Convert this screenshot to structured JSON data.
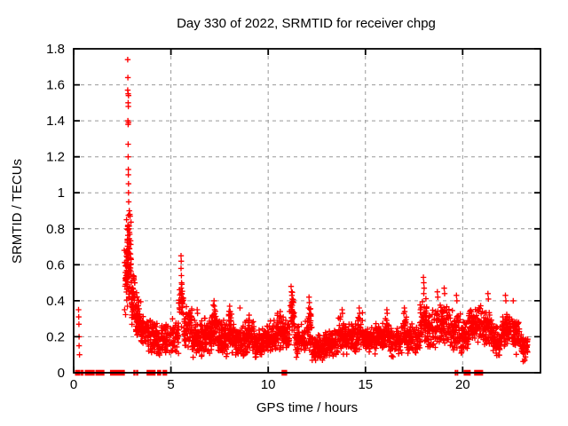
{
  "chart_data": {
    "type": "scatter",
    "title": "Day 330 of 2022, SRMTID for receiver chpg",
    "xlabel": "GPS time / hours",
    "ylabel": "SRMTID / TECUs",
    "xlim": [
      0,
      24
    ],
    "ylim": [
      0,
      1.8
    ],
    "x_ticks": {
      "values": [
        0,
        5,
        10,
        15,
        20
      ],
      "labels": [
        "0",
        "5",
        "10",
        "15",
        "20"
      ]
    },
    "y_ticks": {
      "values": [
        0,
        0.2,
        0.4,
        0.6,
        0.8,
        1.0,
        1.2,
        1.4,
        1.6,
        1.8
      ],
      "labels": [
        "0",
        "0.2",
        "0.4",
        "0.6",
        "0.8",
        "1",
        "1.2",
        "1.4",
        "1.6",
        "1.8"
      ]
    },
    "grid": true,
    "legend": false,
    "marker": {
      "shape": "plus",
      "size": 6.4,
      "color": "#ff0000"
    },
    "colors": {
      "marker": "#ff0000",
      "grid": "#999999",
      "border": "#000000",
      "background": "#ffffff",
      "text": "#000000"
    },
    "outlier_points": [
      [
        0.25,
        0.35
      ],
      [
        0.26,
        0.31
      ],
      [
        0.27,
        0.27
      ],
      [
        0.28,
        0.2
      ],
      [
        0.28,
        0.15
      ],
      [
        0.3,
        0.1
      ],
      [
        2.6,
        0.68
      ],
      [
        2.62,
        0.35
      ],
      [
        2.78,
        1.74
      ],
      [
        2.79,
        1.64
      ],
      [
        2.78,
        1.57
      ],
      [
        2.8,
        1.55
      ],
      [
        2.82,
        1.54
      ],
      [
        2.8,
        1.5
      ],
      [
        2.81,
        1.48
      ],
      [
        2.79,
        1.4
      ],
      [
        2.8,
        1.38
      ],
      [
        2.82,
        1.39
      ],
      [
        2.8,
        1.27
      ],
      [
        2.8,
        1.2
      ],
      [
        2.81,
        1.13
      ],
      [
        2.81,
        1.1
      ],
      [
        2.82,
        1.05
      ],
      [
        2.82,
        1.0
      ],
      [
        2.83,
        0.95
      ],
      [
        2.86,
        0.9
      ],
      [
        2.88,
        0.88
      ],
      [
        2.9,
        0.87
      ],
      [
        2.72,
        0.85
      ],
      [
        2.84,
        0.8
      ],
      [
        2.87,
        0.78
      ],
      [
        2.85,
        0.72
      ],
      [
        2.92,
        0.66
      ],
      [
        2.95,
        0.63
      ],
      [
        2.9,
        0.6
      ],
      [
        5.52,
        0.65
      ],
      [
        5.53,
        0.62
      ],
      [
        5.52,
        0.58
      ],
      [
        5.54,
        0.54
      ],
      [
        5.55,
        0.5
      ],
      [
        5.53,
        0.47
      ],
      [
        5.56,
        0.44
      ],
      [
        5.55,
        0.4
      ],
      [
        5.57,
        0.37
      ],
      [
        6.35,
        0.35
      ],
      [
        6.37,
        0.33
      ],
      [
        7.22,
        0.4
      ],
      [
        7.23,
        0.37
      ],
      [
        7.25,
        0.35
      ],
      [
        8.02,
        0.37
      ],
      [
        8.05,
        0.34
      ],
      [
        8.55,
        0.36
      ],
      [
        9.02,
        0.32
      ],
      [
        10.62,
        0.34
      ],
      [
        10.64,
        0.31
      ],
      [
        11.18,
        0.48
      ],
      [
        11.2,
        0.45
      ],
      [
        11.22,
        0.43
      ],
      [
        11.24,
        0.41
      ],
      [
        11.2,
        0.39
      ],
      [
        12.1,
        0.42
      ],
      [
        12.12,
        0.39
      ],
      [
        12.08,
        0.36
      ],
      [
        13.8,
        0.35
      ],
      [
        13.82,
        0.33
      ],
      [
        14.68,
        0.36
      ],
      [
        14.7,
        0.33
      ],
      [
        16.1,
        0.35
      ],
      [
        16.12,
        0.33
      ],
      [
        17.0,
        0.36
      ],
      [
        17.02,
        0.34
      ],
      [
        17.98,
        0.53
      ],
      [
        18.0,
        0.5
      ],
      [
        18.02,
        0.47
      ],
      [
        18.0,
        0.44
      ],
      [
        18.7,
        0.45
      ],
      [
        18.72,
        0.42
      ],
      [
        19.05,
        0.47
      ],
      [
        19.07,
        0.44
      ],
      [
        19.68,
        0.43
      ],
      [
        19.7,
        0.4
      ],
      [
        21.3,
        0.44
      ],
      [
        21.32,
        0.41
      ],
      [
        22.2,
        0.43
      ],
      [
        22.22,
        0.4
      ],
      [
        22.6,
        0.4
      ]
    ],
    "zero_value_runs": [
      [
        0.1,
        0.3
      ],
      [
        0.38,
        0.5
      ],
      [
        0.6,
        1.05
      ],
      [
        1.15,
        1.55
      ],
      [
        1.9,
        2.62
      ],
      [
        3.1,
        3.16
      ],
      [
        3.24,
        3.3
      ],
      [
        3.78,
        4.18
      ],
      [
        4.32,
        4.48
      ],
      [
        4.6,
        4.78
      ],
      [
        10.72,
        10.95
      ],
      [
        19.62,
        19.66
      ],
      [
        19.72,
        19.76
      ],
      [
        20.08,
        20.38
      ],
      [
        20.62,
        21.02
      ]
    ],
    "dense_band_segments": [
      [
        2.62,
        2.75,
        0.3,
        0.75,
        25
      ],
      [
        2.75,
        2.95,
        0.35,
        0.95,
        60
      ],
      [
        2.95,
        3.15,
        0.25,
        0.6,
        45
      ],
      [
        3.15,
        3.45,
        0.18,
        0.45,
        50
      ],
      [
        3.45,
        3.8,
        0.15,
        0.32,
        45
      ],
      [
        3.8,
        4.3,
        0.1,
        0.3,
        70
      ],
      [
        4.3,
        4.9,
        0.08,
        0.28,
        70
      ],
      [
        4.9,
        5.4,
        0.1,
        0.3,
        55
      ],
      [
        5.4,
        5.65,
        0.25,
        0.55,
        35
      ],
      [
        5.65,
        6.1,
        0.12,
        0.38,
        70
      ],
      [
        6.1,
        6.6,
        0.08,
        0.3,
        75
      ],
      [
        6.6,
        7.1,
        0.1,
        0.32,
        75
      ],
      [
        7.1,
        7.4,
        0.15,
        0.38,
        50
      ],
      [
        7.4,
        7.9,
        0.08,
        0.3,
        75
      ],
      [
        7.9,
        8.15,
        0.12,
        0.36,
        40
      ],
      [
        8.15,
        8.8,
        0.08,
        0.28,
        85
      ],
      [
        8.8,
        9.3,
        0.1,
        0.3,
        70
      ],
      [
        9.3,
        9.9,
        0.08,
        0.26,
        80
      ],
      [
        9.9,
        10.4,
        0.1,
        0.3,
        70
      ],
      [
        10.4,
        10.8,
        0.12,
        0.34,
        55
      ],
      [
        10.8,
        11.1,
        0.1,
        0.3,
        40
      ],
      [
        11.1,
        11.35,
        0.2,
        0.45,
        35
      ],
      [
        11.35,
        11.9,
        0.08,
        0.28,
        70
      ],
      [
        11.9,
        12.25,
        0.12,
        0.38,
        45
      ],
      [
        12.25,
        12.9,
        0.05,
        0.22,
        80
      ],
      [
        12.9,
        13.6,
        0.08,
        0.26,
        85
      ],
      [
        13.6,
        14.0,
        0.1,
        0.32,
        55
      ],
      [
        14.0,
        14.6,
        0.1,
        0.28,
        75
      ],
      [
        14.6,
        14.85,
        0.12,
        0.34,
        35
      ],
      [
        14.85,
        15.5,
        0.1,
        0.26,
        80
      ],
      [
        15.5,
        16.0,
        0.1,
        0.3,
        65
      ],
      [
        16.0,
        16.25,
        0.12,
        0.34,
        35
      ],
      [
        16.25,
        16.9,
        0.08,
        0.26,
        80
      ],
      [
        16.9,
        17.15,
        0.12,
        0.34,
        35
      ],
      [
        17.15,
        17.8,
        0.1,
        0.28,
        75
      ],
      [
        17.8,
        18.15,
        0.15,
        0.42,
        45
      ],
      [
        18.15,
        18.6,
        0.12,
        0.35,
        55
      ],
      [
        18.6,
        19.2,
        0.15,
        0.4,
        70
      ],
      [
        19.2,
        19.9,
        0.12,
        0.36,
        75
      ],
      [
        19.9,
        20.3,
        0.1,
        0.3,
        50
      ],
      [
        20.3,
        21.0,
        0.15,
        0.38,
        85
      ],
      [
        21.0,
        21.55,
        0.12,
        0.36,
        65
      ],
      [
        21.55,
        22.0,
        0.07,
        0.28,
        55
      ],
      [
        22.0,
        22.5,
        0.12,
        0.38,
        65
      ],
      [
        22.5,
        23.0,
        0.1,
        0.32,
        60
      ],
      [
        23.0,
        23.35,
        0.05,
        0.22,
        40
      ]
    ],
    "noise_seed": 330
  }
}
